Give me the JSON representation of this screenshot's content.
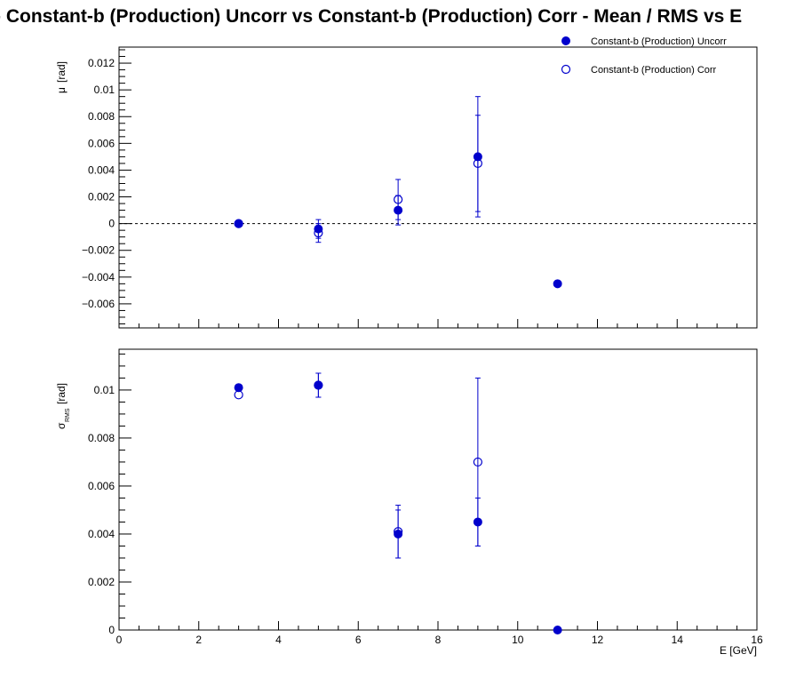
{
  "title": "-  Constant-b (Production) Uncorr vs Constant-b (Production) Corr  -  Mean / RMS vs E",
  "chart_data": [
    {
      "type": "scatter",
      "panel": "mean",
      "ylabel_symbol": "μ",
      "ylabel_unit": "[rad]",
      "ylim": [
        -0.0078,
        0.0132
      ],
      "xlim": [
        0,
        16
      ],
      "yticks": [
        -0.006,
        -0.004,
        -0.002,
        0,
        0.002,
        0.004,
        0.006,
        0.008,
        0.01,
        0.012
      ],
      "ytick_labels": [
        "−0.006",
        "−0.004",
        "−0.002",
        "0",
        "0.002",
        "0.004",
        "0.006",
        "0.008",
        "0.01",
        "0.012"
      ],
      "zero_line": true,
      "series": [
        {
          "name": "Constant-b (Production) Uncorr",
          "marker": "filled-circle",
          "color": "#0000cc",
          "x": [
            3,
            5,
            7,
            9,
            11
          ],
          "y": [
            0.0,
            -0.0004,
            0.001,
            0.005,
            -0.0045
          ],
          "yerr": [
            0.0,
            0.0007,
            0.0011,
            0.0045,
            0.0
          ]
        },
        {
          "name": "Constant-b (Production) Corr",
          "marker": "open-circle",
          "color": "#0000cc",
          "x": [
            3,
            5,
            7,
            9
          ],
          "y": [
            0.0,
            -0.0007,
            0.0018,
            0.0045
          ],
          "yerr": [
            0.0,
            0.0007,
            0.0015,
            0.0036
          ]
        }
      ]
    },
    {
      "type": "scatter",
      "panel": "rms",
      "ylabel_symbol": "σ",
      "ylabel_sub": "RMS",
      "ylabel_unit": "[rad]",
      "ylim": [
        0,
        0.0117
      ],
      "xlim": [
        0,
        16
      ],
      "xlabel": "E  [GeV]",
      "xticks": [
        0,
        2,
        4,
        6,
        8,
        10,
        12,
        14,
        16
      ],
      "xtick_labels": [
        "0",
        "2",
        "4",
        "6",
        "8",
        "10",
        "12",
        "14",
        "16"
      ],
      "yticks": [
        0,
        0.002,
        0.004,
        0.006,
        0.008,
        0.01
      ],
      "ytick_labels": [
        "0",
        "0.002",
        "0.004",
        "0.006",
        "0.008",
        "0.01"
      ],
      "series": [
        {
          "name": "Constant-b (Production) Uncorr",
          "marker": "filled-circle",
          "color": "#0000cc",
          "x": [
            3,
            5,
            7,
            9,
            11
          ],
          "y": [
            0.0101,
            0.0102,
            0.004,
            0.0045,
            0.0
          ],
          "yerr": [
            0.0,
            0.0005,
            0.001,
            0.001,
            0.0
          ]
        },
        {
          "name": "Constant-b (Production) Corr",
          "marker": "open-circle",
          "color": "#0000cc",
          "x": [
            3,
            5,
            7,
            9
          ],
          "y": [
            0.0098,
            0.0102,
            0.0041,
            0.007
          ],
          "yerr": [
            0.0,
            0.0005,
            0.0011,
            0.0035
          ]
        }
      ]
    }
  ],
  "legend": {
    "placement": "top-right",
    "entries": [
      {
        "label": "Constant-b (Production) Uncorr",
        "marker": "filled-circle"
      },
      {
        "label": "Constant-b (Production) Corr",
        "marker": "open-circle"
      }
    ]
  }
}
